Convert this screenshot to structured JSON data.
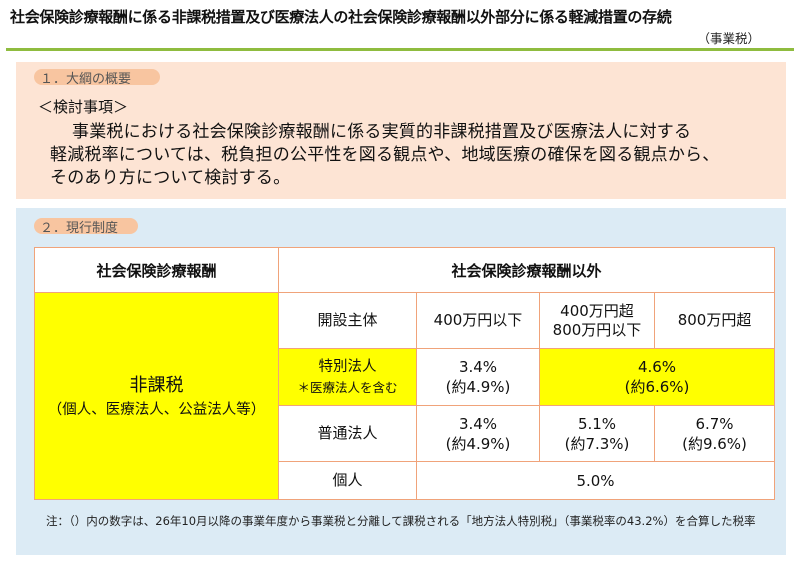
{
  "header": {
    "title": "社会保険診療報酬に係る非課税措置及び医療法人の社会保険診療報酬以外部分に係る軽減措置の存続",
    "tax_type": "（事業税）"
  },
  "section1": {
    "heading": "１．大綱の概要",
    "review_heading": "＜検討事項＞",
    "lines": [
      "事業税における社会保険診療報酬に係る実質的非課税措置及び医療法人に対する",
      "軽減税率については、税負担の公平性を図る観点や、地域医療の確保を図る観点から、",
      "そのあり方について検討する。"
    ]
  },
  "section2": {
    "heading": "２．現行制度",
    "table": {
      "col_insurance": "社会保険診療報酬",
      "col_other": "社会保険診療報酬以外",
      "nontax_label": "非課税",
      "nontax_sub": "（個人、医療法人、公益法人等）",
      "row_header": {
        "label": "開設主体",
        "band1": "400万円以下",
        "band2_line1": "400万円超",
        "band2_line2": "800万円以下",
        "band3": "800万円超"
      },
      "row_special": {
        "label": "特別法人",
        "note": "＊医療法人を含む",
        "rate1": "3.4%",
        "rate1_incl": "(約4.9%)",
        "rate23": "4.6%",
        "rate23_incl": "(約6.6%)"
      },
      "row_ordinary": {
        "label": "普通法人",
        "rate1": "3.4%",
        "rate1_incl": "(約4.9%)",
        "rate2": "5.1%",
        "rate2_incl": "(約7.3%)",
        "rate3": "6.7%",
        "rate3_incl": "(約9.6%)"
      },
      "row_individual": {
        "label": "個人",
        "rate": "5.0%"
      }
    },
    "note": "注：（）内の数字は、26年10月以降の事業年度から事業税と分離して課税される「地方法人特別税」（事業税率の43.2%）を合算した税率"
  },
  "colors": {
    "accent_green": "#8fbc3f",
    "section1_bg": "#fde4d4",
    "section2_bg": "#dcebf5",
    "highlight_yellow": "#ffff00",
    "table_border": "#f0a37a"
  }
}
